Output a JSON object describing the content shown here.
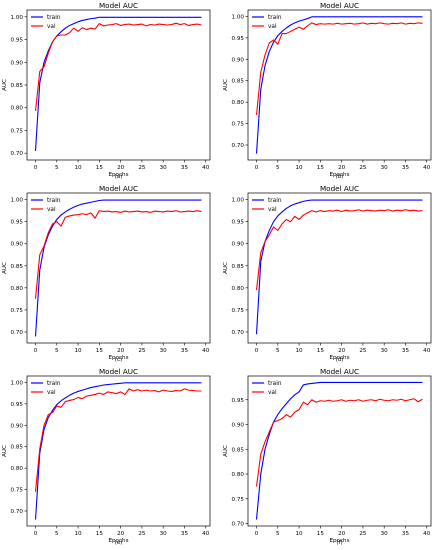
{
  "colors": {
    "train": "#0000ff",
    "val": "#ff0000"
  },
  "chart_data": [
    {
      "type": "line",
      "title": "Model AUC",
      "xlabel": "Epochs",
      "ylabel": "AUC",
      "caption": "(a)",
      "xlim": [
        -2,
        41
      ],
      "ylim": [
        0.685,
        1.015
      ],
      "xticks": [
        0,
        5,
        10,
        15,
        20,
        25,
        30,
        35,
        40
      ],
      "yticks": [
        0.7,
        0.75,
        0.8,
        0.85,
        0.9,
        0.95,
        1.0
      ],
      "ytick_labels": [
        "0.70",
        "0.75",
        "0.80",
        "0.85",
        "0.90",
        "0.95",
        "1.00"
      ],
      "legend": "top-left",
      "grid": false,
      "x": [
        0,
        1,
        2,
        3,
        4,
        5,
        6,
        7,
        8,
        9,
        10,
        11,
        12,
        13,
        14,
        15,
        16,
        17,
        18,
        19,
        20,
        21,
        22,
        23,
        24,
        25,
        26,
        27,
        28,
        29,
        30,
        31,
        32,
        33,
        34,
        35,
        36,
        37,
        38,
        39
      ],
      "series": [
        {
          "name": "train",
          "values": [
            0.705,
            0.855,
            0.9,
            0.925,
            0.945,
            0.958,
            0.967,
            0.975,
            0.981,
            0.985,
            0.989,
            0.992,
            0.994,
            0.996,
            0.997,
            0.999,
            0.999,
            0.999,
            0.999,
            0.999,
            0.999,
            0.999,
            0.999,
            0.999,
            0.999,
            0.999,
            0.999,
            0.999,
            0.999,
            0.999,
            0.999,
            0.999,
            0.999,
            0.999,
            0.999,
            0.999,
            0.999,
            0.999,
            0.999,
            0.999
          ]
        },
        {
          "name": "val",
          "values": [
            0.793,
            0.88,
            0.89,
            0.92,
            0.945,
            0.958,
            0.96,
            0.96,
            0.965,
            0.975,
            0.968,
            0.976,
            0.972,
            0.975,
            0.973,
            0.985,
            0.98,
            0.982,
            0.983,
            0.985,
            0.981,
            0.983,
            0.984,
            0.982,
            0.983,
            0.984,
            0.98,
            0.983,
            0.982,
            0.984,
            0.983,
            0.982,
            0.983,
            0.986,
            0.983,
            0.985,
            0.981,
            0.983,
            0.984,
            0.982
          ]
        }
      ]
    },
    {
      "type": "line",
      "title": "Model AUC",
      "xlabel": "Epochs",
      "ylabel": "AUC",
      "caption": "(b)",
      "xlim": [
        -2,
        41
      ],
      "ylim": [
        0.665,
        1.015
      ],
      "xticks": [
        0,
        5,
        10,
        15,
        20,
        25,
        30,
        35,
        40
      ],
      "yticks": [
        0.7,
        0.75,
        0.8,
        0.85,
        0.9,
        0.95,
        1.0
      ],
      "ytick_labels": [
        "0.70",
        "0.75",
        "0.80",
        "0.85",
        "0.90",
        "0.95",
        "1.00"
      ],
      "legend": "top-left",
      "grid": false,
      "x": [
        0,
        1,
        2,
        3,
        4,
        5,
        6,
        7,
        8,
        9,
        10,
        11,
        12,
        13,
        14,
        15,
        16,
        17,
        18,
        19,
        20,
        21,
        22,
        23,
        24,
        25,
        26,
        27,
        28,
        29,
        30,
        31,
        32,
        33,
        34,
        35,
        36,
        37,
        38,
        39
      ],
      "series": [
        {
          "name": "train",
          "values": [
            0.68,
            0.83,
            0.885,
            0.918,
            0.94,
            0.955,
            0.965,
            0.973,
            0.98,
            0.985,
            0.989,
            0.992,
            0.995,
            0.999,
            0.999,
            0.999,
            0.999,
            0.999,
            0.999,
            0.999,
            0.999,
            0.999,
            0.999,
            0.999,
            0.999,
            0.999,
            0.999,
            0.999,
            0.999,
            0.999,
            0.999,
            0.999,
            0.999,
            0.999,
            0.999,
            0.999,
            0.999,
            0.999,
            0.999,
            0.999
          ]
        },
        {
          "name": "val",
          "values": [
            0.77,
            0.87,
            0.91,
            0.938,
            0.945,
            0.935,
            0.96,
            0.96,
            0.965,
            0.97,
            0.975,
            0.97,
            0.978,
            0.985,
            0.981,
            0.983,
            0.982,
            0.983,
            0.982,
            0.984,
            0.982,
            0.983,
            0.984,
            0.982,
            0.983,
            0.985,
            0.982,
            0.984,
            0.983,
            0.985,
            0.983,
            0.982,
            0.984,
            0.983,
            0.985,
            0.982,
            0.984,
            0.983,
            0.985,
            0.984
          ]
        }
      ]
    },
    {
      "type": "line",
      "title": "Model AUC",
      "xlabel": "Epochs",
      "ylabel": "AUC",
      "caption": "(c)",
      "xlim": [
        -2,
        41
      ],
      "ylim": [
        0.675,
        1.015
      ],
      "xticks": [
        0,
        5,
        10,
        15,
        20,
        25,
        30,
        35,
        40
      ],
      "yticks": [
        0.7,
        0.75,
        0.8,
        0.85,
        0.9,
        0.95,
        1.0
      ],
      "ytick_labels": [
        "0.70",
        "0.75",
        "0.80",
        "0.85",
        "0.90",
        "0.95",
        "1.00"
      ],
      "legend": "top-left",
      "grid": false,
      "x": [
        0,
        1,
        2,
        3,
        4,
        5,
        6,
        7,
        8,
        9,
        10,
        11,
        12,
        13,
        14,
        15,
        16,
        17,
        18,
        19,
        20,
        21,
        22,
        23,
        24,
        25,
        26,
        27,
        28,
        29,
        30,
        31,
        32,
        33,
        34,
        35,
        36,
        37,
        38,
        39
      ],
      "series": [
        {
          "name": "train",
          "values": [
            0.69,
            0.84,
            0.892,
            0.92,
            0.94,
            0.955,
            0.965,
            0.972,
            0.978,
            0.983,
            0.987,
            0.99,
            0.992,
            0.994,
            0.996,
            0.998,
            0.999,
            0.999,
            0.999,
            0.999,
            0.999,
            0.999,
            0.999,
            0.999,
            0.999,
            0.999,
            0.999,
            0.999,
            0.999,
            0.999,
            0.999,
            0.999,
            0.999,
            0.999,
            0.999,
            0.999,
            0.999,
            0.999,
            0.999,
            0.999
          ]
        },
        {
          "name": "val",
          "values": [
            0.775,
            0.875,
            0.895,
            0.925,
            0.945,
            0.95,
            0.94,
            0.96,
            0.963,
            0.965,
            0.966,
            0.968,
            0.966,
            0.97,
            0.958,
            0.975,
            0.973,
            0.974,
            0.972,
            0.973,
            0.971,
            0.974,
            0.972,
            0.973,
            0.974,
            0.972,
            0.973,
            0.971,
            0.974,
            0.973,
            0.972,
            0.974,
            0.973,
            0.975,
            0.972,
            0.973,
            0.974,
            0.973,
            0.975,
            0.973
          ]
        }
      ]
    },
    {
      "type": "line",
      "title": "Model AUC",
      "xlabel": "Epochs",
      "ylabel": "AUC",
      "caption": "(d)",
      "xlim": [
        -2,
        41
      ],
      "ylim": [
        0.675,
        1.015
      ],
      "xticks": [
        0,
        5,
        10,
        15,
        20,
        25,
        30,
        35,
        40
      ],
      "yticks": [
        0.7,
        0.75,
        0.8,
        0.85,
        0.9,
        0.95,
        1.0
      ],
      "ytick_labels": [
        "0.70",
        "0.75",
        "0.80",
        "0.85",
        "0.90",
        "0.95",
        "1.00"
      ],
      "legend": "top-left",
      "grid": false,
      "x": [
        0,
        1,
        2,
        3,
        4,
        5,
        6,
        7,
        8,
        9,
        10,
        11,
        12,
        13,
        14,
        15,
        16,
        17,
        18,
        19,
        20,
        21,
        22,
        23,
        24,
        25,
        26,
        27,
        28,
        29,
        30,
        31,
        32,
        33,
        34,
        35,
        36,
        37,
        38,
        39
      ],
      "series": [
        {
          "name": "train",
          "values": [
            0.695,
            0.86,
            0.905,
            0.93,
            0.95,
            0.963,
            0.972,
            0.98,
            0.986,
            0.99,
            0.993,
            0.996,
            0.998,
            0.999,
            0.999,
            0.999,
            0.999,
            0.999,
            0.999,
            0.999,
            0.999,
            0.999,
            0.999,
            0.999,
            0.999,
            0.999,
            0.999,
            0.999,
            0.999,
            0.999,
            0.999,
            0.999,
            0.999,
            0.999,
            0.999,
            0.999,
            0.999,
            0.999,
            0.999,
            0.999
          ]
        },
        {
          "name": "val",
          "values": [
            0.795,
            0.88,
            0.905,
            0.92,
            0.938,
            0.93,
            0.945,
            0.955,
            0.95,
            0.962,
            0.955,
            0.965,
            0.97,
            0.975,
            0.972,
            0.975,
            0.973,
            0.975,
            0.974,
            0.976,
            0.973,
            0.976,
            0.974,
            0.975,
            0.977,
            0.974,
            0.976,
            0.975,
            0.974,
            0.976,
            0.975,
            0.977,
            0.974,
            0.976,
            0.975,
            0.977,
            0.975,
            0.976,
            0.974,
            0.975
          ]
        }
      ]
    },
    {
      "type": "line",
      "title": "Model AUC",
      "xlabel": "Epochs",
      "ylabel": "AUC",
      "caption": "(e)",
      "xlim": [
        -2,
        41
      ],
      "ylim": [
        0.665,
        1.015
      ],
      "xticks": [
        0,
        5,
        10,
        15,
        20,
        25,
        30,
        35,
        40
      ],
      "yticks": [
        0.7,
        0.75,
        0.8,
        0.85,
        0.9,
        0.95,
        1.0
      ],
      "ytick_labels": [
        "0.70",
        "0.75",
        "0.80",
        "0.85",
        "0.90",
        "0.95",
        "1.00"
      ],
      "legend": "top-left",
      "grid": false,
      "x": [
        0,
        1,
        2,
        3,
        4,
        5,
        6,
        7,
        8,
        9,
        10,
        11,
        12,
        13,
        14,
        15,
        16,
        17,
        18,
        19,
        20,
        21,
        22,
        23,
        24,
        25,
        26,
        27,
        28,
        29,
        30,
        31,
        32,
        33,
        34,
        35,
        36,
        37,
        38,
        39
      ],
      "series": [
        {
          "name": "train",
          "values": [
            0.68,
            0.835,
            0.89,
            0.918,
            0.935,
            0.948,
            0.957,
            0.964,
            0.97,
            0.975,
            0.979,
            0.982,
            0.985,
            0.988,
            0.99,
            0.992,
            0.994,
            0.995,
            0.996,
            0.997,
            0.998,
            0.999,
            0.999,
            0.999,
            0.999,
            0.999,
            0.999,
            0.999,
            0.999,
            0.999,
            0.999,
            0.999,
            0.999,
            0.999,
            0.999,
            0.999,
            0.999,
            0.999,
            0.999,
            0.999
          ]
        },
        {
          "name": "val",
          "values": [
            0.745,
            0.845,
            0.9,
            0.925,
            0.93,
            0.945,
            0.942,
            0.955,
            0.958,
            0.96,
            0.965,
            0.962,
            0.968,
            0.97,
            0.972,
            0.975,
            0.972,
            0.978,
            0.976,
            0.974,
            0.978,
            0.972,
            0.985,
            0.98,
            0.983,
            0.98,
            0.982,
            0.98,
            0.981,
            0.978,
            0.982,
            0.98,
            0.979,
            0.981,
            0.98,
            0.985,
            0.982,
            0.981,
            0.98,
            0.98
          ]
        }
      ]
    },
    {
      "type": "line",
      "title": "Model AUC",
      "xlabel": "Epochs",
      "ylabel": "AUC",
      "caption": "(f)",
      "xlim": [
        -2,
        41
      ],
      "ylim": [
        0.695,
        0.998
      ],
      "xticks": [
        0,
        5,
        10,
        15,
        20,
        25,
        30,
        35,
        40
      ],
      "yticks": [
        0.7,
        0.75,
        0.8,
        0.85,
        0.9,
        0.95
      ],
      "ytick_labels": [
        "0.70",
        "0.75",
        "0.80",
        "0.85",
        "0.90",
        "0.95"
      ],
      "legend": "top-left",
      "grid": false,
      "x": [
        0,
        1,
        2,
        3,
        4,
        5,
        6,
        7,
        8,
        9,
        10,
        11,
        12,
        13,
        14,
        15,
        16,
        17,
        18,
        19,
        20,
        21,
        22,
        23,
        24,
        25,
        26,
        27,
        28,
        29,
        30,
        31,
        32,
        33,
        34,
        35,
        36,
        37,
        38,
        39
      ],
      "series": [
        {
          "name": "train",
          "values": [
            0.708,
            0.8,
            0.85,
            0.88,
            0.905,
            0.92,
            0.932,
            0.942,
            0.952,
            0.96,
            0.966,
            0.98,
            0.982,
            0.983,
            0.984,
            0.985,
            0.985,
            0.985,
            0.985,
            0.985,
            0.985,
            0.985,
            0.985,
            0.985,
            0.985,
            0.985,
            0.985,
            0.985,
            0.985,
            0.985,
            0.985,
            0.985,
            0.985,
            0.985,
            0.985,
            0.985,
            0.985,
            0.985,
            0.985,
            0.985
          ]
        },
        {
          "name": "val",
          "values": [
            0.775,
            0.84,
            0.865,
            0.885,
            0.905,
            0.908,
            0.912,
            0.92,
            0.915,
            0.925,
            0.93,
            0.945,
            0.94,
            0.95,
            0.945,
            0.948,
            0.947,
            0.949,
            0.947,
            0.948,
            0.95,
            0.947,
            0.949,
            0.948,
            0.95,
            0.947,
            0.949,
            0.95,
            0.948,
            0.951,
            0.949,
            0.948,
            0.95,
            0.949,
            0.951,
            0.948,
            0.95,
            0.952,
            0.946,
            0.951
          ]
        }
      ]
    }
  ]
}
